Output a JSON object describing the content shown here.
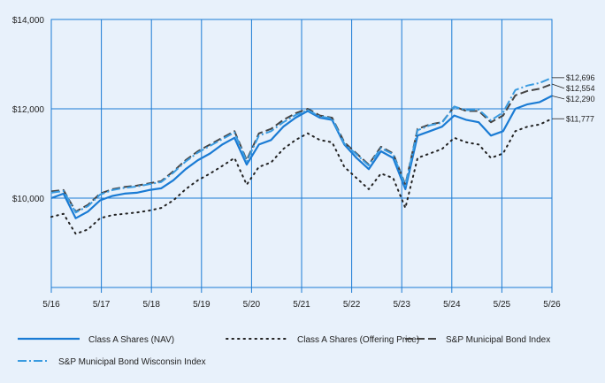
{
  "chart_data": {
    "type": "line",
    "title": "",
    "xlabel": "",
    "ylabel": "",
    "ylim": [
      8000,
      14000
    ],
    "y_ticks": [
      10000,
      12000,
      14000
    ],
    "y_tick_labels": [
      "$10,000",
      "$12,000",
      "$14,000"
    ],
    "x_tick_labels": [
      "5/16",
      "5/17",
      "5/18",
      "5/19",
      "5/20",
      "5/21",
      "5/22",
      "5/23",
      "5/24",
      "5/25",
      "5/26"
    ],
    "grid": true,
    "legend_position": "bottom",
    "x": [
      "5/16",
      "8/16",
      "11/16",
      "2/17",
      "5/17",
      "8/17",
      "11/17",
      "2/18",
      "5/18",
      "8/18",
      "11/18",
      "2/19",
      "5/19",
      "8/19",
      "11/19",
      "2/20",
      "3/20",
      "5/20",
      "8/20",
      "11/20",
      "2/21",
      "5/21",
      "8/21",
      "11/21",
      "2/22",
      "5/22",
      "8/22",
      "11/22",
      "2/23",
      "5/23",
      "8/23",
      "11/23",
      "2/24",
      "5/24",
      "8/24",
      "11/24",
      "2/25",
      "5/25",
      "8/25",
      "11/25",
      "2/26",
      "5/26"
    ],
    "series": [
      {
        "name": "Class A Shares (NAV)",
        "color": "#1a7bd4",
        "style": "solid",
        "end_label": "$12,290",
        "values": [
          10000,
          10100,
          9550,
          9700,
          9950,
          10050,
          10100,
          10120,
          10180,
          10220,
          10400,
          10650,
          10850,
          11000,
          11200,
          11350,
          10750,
          11200,
          11300,
          11600,
          11800,
          11950,
          11800,
          11750,
          11200,
          10900,
          10650,
          11050,
          10900,
          10200,
          11400,
          11500,
          11600,
          11850,
          11750,
          11700,
          11400,
          11500,
          12000,
          12100,
          12150,
          12290
        ]
      },
      {
        "name": "Class A Shares (Offering Price)",
        "color": "#222222",
        "style": "dotted",
        "end_label": "$11,777",
        "values": [
          9580,
          9650,
          9200,
          9300,
          9550,
          9620,
          9650,
          9680,
          9720,
          9780,
          9950,
          10200,
          10400,
          10550,
          10720,
          10900,
          10300,
          10700,
          10800,
          11100,
          11300,
          11450,
          11300,
          11250,
          10700,
          10450,
          10200,
          10550,
          10450,
          9780,
          10900,
          11000,
          11100,
          11350,
          11250,
          11200,
          10900,
          11000,
          11500,
          11600,
          11650,
          11777
        ]
      },
      {
        "name": "S&P Municipal Bond Index",
        "color": "#444444",
        "style": "dashed",
        "end_label": "$12,554",
        "values": [
          10150,
          10180,
          9700,
          9850,
          10100,
          10200,
          10250,
          10280,
          10330,
          10380,
          10600,
          10850,
          11050,
          11200,
          11350,
          11500,
          10850,
          11450,
          11550,
          11750,
          11900,
          12000,
          11850,
          11800,
          11250,
          11000,
          10750,
          11150,
          11000,
          10300,
          11550,
          11650,
          11700,
          12050,
          11950,
          11950,
          11700,
          11850,
          12300,
          12400,
          12450,
          12554
        ]
      },
      {
        "name": "S&P Municipal Bond Wisconsin Index",
        "color": "#3a9be0",
        "style": "dashdot",
        "end_label": "$12,696",
        "values": [
          10120,
          10160,
          9680,
          9820,
          10080,
          10180,
          10230,
          10260,
          10310,
          10360,
          10570,
          10820,
          11020,
          11170,
          11320,
          11470,
          10820,
          11400,
          11500,
          11700,
          11860,
          11970,
          11830,
          11780,
          11220,
          10980,
          10730,
          11120,
          10980,
          10280,
          11520,
          11630,
          11690,
          12050,
          11970,
          11980,
          11740,
          11920,
          12420,
          12520,
          12580,
          12696
        ]
      }
    ]
  }
}
